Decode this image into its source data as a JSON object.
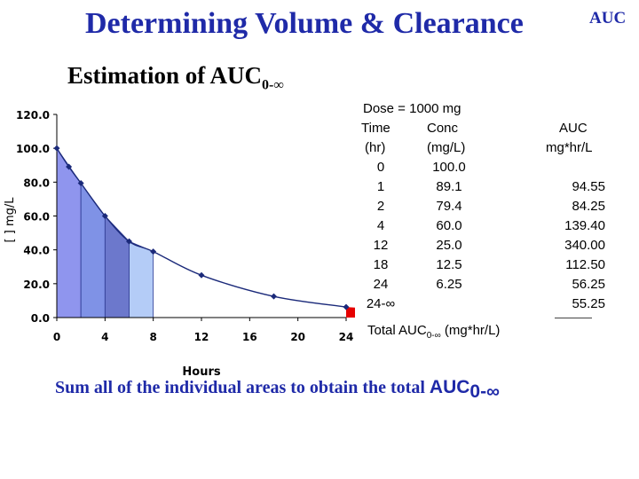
{
  "header": {
    "title": "Determining Volume & Clearance",
    "corner_label": "AUC",
    "subtitle_main": "Estimation of AUC",
    "subtitle_sub": "0-∞"
  },
  "table": {
    "dose": "Dose = 1000 mg",
    "col_time_1": "Time",
    "col_time_2": "(hr)",
    "col_conc_1": "Conc",
    "col_conc_2": "(mg/L)",
    "col_auc_1": "AUC",
    "col_auc_2": "mg*hr/L",
    "rows": [
      {
        "time": "0",
        "conc": "100.0",
        "auc": ""
      },
      {
        "time": "1",
        "conc": "89.1",
        "auc": "94.55"
      },
      {
        "time": "2",
        "conc": "79.4",
        "auc": "84.25"
      },
      {
        "time": "4",
        "conc": "60.0",
        "auc": "139.40"
      },
      {
        "time": "12",
        "conc": "25.0",
        "auc": "340.00"
      },
      {
        "time": "18",
        "conc": "12.5",
        "auc": "112.50"
      },
      {
        "time": "24",
        "conc": "6.25",
        "auc": "56.25"
      },
      {
        "time": "24-∞",
        "conc": "",
        "auc": "55.25"
      }
    ],
    "total_label_main": "Total AUC",
    "total_label_sub": "0-∞",
    "total_label_unit": " (mg*hr/L)"
  },
  "footer": {
    "text_main": "Sum all of the individual areas to obtain the total ",
    "text_auc": "AUC",
    "text_sub": "0-∞"
  },
  "chart_data": {
    "type": "area",
    "xlabel": "Hours",
    "ylabel": "[ ] mg/L",
    "xlim": [
      0,
      24
    ],
    "ylim": [
      0,
      120
    ],
    "x_ticks": [
      "0",
      "4",
      "8",
      "12",
      "16",
      "20",
      "24"
    ],
    "y_ticks": [
      "0.0",
      "20.0",
      "40.0",
      "60.0",
      "80.0",
      "100.0",
      "120.0"
    ],
    "points": [
      {
        "x": 0,
        "y": 100.0
      },
      {
        "x": 1,
        "y": 89.1
      },
      {
        "x": 2,
        "y": 79.4
      },
      {
        "x": 4,
        "y": 60.0
      },
      {
        "x": 6,
        "y": 45.0
      },
      {
        "x": 8,
        "y": 39.0
      },
      {
        "x": 12,
        "y": 25.0
      },
      {
        "x": 18,
        "y": 12.5
      },
      {
        "x": 24,
        "y": 6.25
      }
    ],
    "trapezoids": [
      {
        "x0": 0,
        "x1": 2,
        "color": "#8f95ee"
      },
      {
        "x0": 2,
        "x1": 4,
        "color": "#7f92e6"
      },
      {
        "x0": 4,
        "x1": 6,
        "color": "#6c78cc"
      },
      {
        "x0": 6,
        "x1": 8,
        "color": "#b4ccf7"
      }
    ],
    "tail_color": "#e60000",
    "curve_color": "#1b2a7a"
  }
}
